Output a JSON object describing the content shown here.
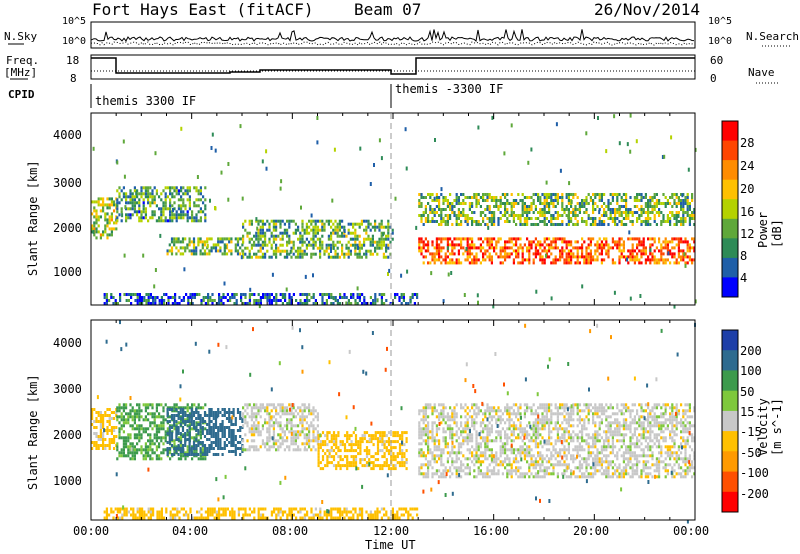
{
  "header": {
    "station": "Fort Hays East (fitACF)",
    "beam": "Beam 07",
    "date": "26/Nov/2014"
  },
  "strip_labels": {
    "nsky": "N.Sky",
    "nsky_ticks": [
      "10^5",
      "10^0"
    ],
    "nsearch": "N.Search",
    "nsearch_ticks": [
      "10^5",
      "10^0"
    ],
    "freq": "Freq.",
    "freq_unit": "[MHz]",
    "freq_ticks": [
      "18",
      "8"
    ],
    "nave": "Nave",
    "nave_ticks": [
      "60",
      "0"
    ],
    "cpid": "CPID",
    "cpid_names": [
      "themis 3300 IF",
      "themis -3300 IF"
    ]
  },
  "panels": {
    "power": {
      "ylabel": "Slant Range [km]",
      "yticks": [
        "4000",
        "3000",
        "2000",
        "1000"
      ],
      "cbar_label": "Power [dB]",
      "cbar_ticks": [
        "28",
        "24",
        "20",
        "16",
        "12",
        "8",
        "4"
      ],
      "cbar_colors": [
        "#ff0000",
        "#ff4500",
        "#ff8c00",
        "#ffc000",
        "#b4d200",
        "#5fa83a",
        "#2e8b57",
        "#1f5fa8",
        "#0000ff"
      ]
    },
    "velocity": {
      "ylabel": "Slant Range [km]",
      "yticks": [
        "4000",
        "3000",
        "2000",
        "1000"
      ],
      "cbar_label": "Velocity [m s^-1]",
      "cbar_ticks": [
        "200",
        "100",
        "50",
        "15",
        "-15",
        "-50",
        "-100",
        "-200"
      ],
      "cbar_colors": [
        "#1e3fa8",
        "#2e6b8f",
        "#3c9a4c",
        "#7ec83c",
        "#c8c8c8",
        "#ffc000",
        "#ff9a00",
        "#ff5000",
        "#ff0000"
      ]
    }
  },
  "xaxis": {
    "label": "Time UT",
    "ticks": [
      "00:00",
      "04:00",
      "08:00",
      "12:00",
      "16:00",
      "20:00",
      "00:00"
    ]
  },
  "chart_data": [
    {
      "type": "heatmap",
      "title": "Power",
      "xlabel": "Time UT",
      "ylabel": "Slant Range [km]",
      "xlim": [
        0,
        24
      ],
      "ylim": [
        180,
        4500
      ],
      "clabel": "Power [dB]",
      "clim": [
        0,
        30
      ],
      "bands": [
        {
          "t0": 0.0,
          "t1": 1.0,
          "r0": 1700,
          "r1": 2600,
          "value": 14
        },
        {
          "t0": 1.0,
          "t1": 4.5,
          "r0": 2100,
          "r1": 2850,
          "value": 10
        },
        {
          "t0": 3.0,
          "t1": 6.0,
          "r0": 1350,
          "r1": 1700,
          "value": 12
        },
        {
          "t0": 6.0,
          "t1": 12.0,
          "r0": 1250,
          "r1": 2100,
          "value": 11
        },
        {
          "t0": 13.0,
          "t1": 24.0,
          "r0": 1100,
          "r1": 1700,
          "value": 24
        },
        {
          "t0": 13.0,
          "t1": 24.0,
          "r0": 2000,
          "r1": 2700,
          "value": 12
        },
        {
          "t0": 0.5,
          "t1": 13.0,
          "r0": 200,
          "r1": 450,
          "value": 6
        }
      ]
    },
    {
      "type": "heatmap",
      "title": "Velocity",
      "xlabel": "Time UT",
      "ylabel": "Slant Range [km]",
      "xlim": [
        0,
        24
      ],
      "ylim": [
        180,
        4500
      ],
      "clabel": "Velocity [m s^-1]",
      "clim": [
        -200,
        200
      ],
      "bands": [
        {
          "t0": 0.0,
          "t1": 1.0,
          "r0": 1700,
          "r1": 2600,
          "value": -30
        },
        {
          "t0": 1.0,
          "t1": 4.5,
          "r0": 1500,
          "r1": 2700,
          "value": 60
        },
        {
          "t0": 3.0,
          "t1": 6.0,
          "r0": 1600,
          "r1": 2600,
          "value": 120
        },
        {
          "t0": 6.0,
          "t1": 9.0,
          "r0": 1700,
          "r1": 2700,
          "value": 0
        },
        {
          "t0": 9.0,
          "t1": 12.5,
          "r0": 1300,
          "r1": 2100,
          "value": -30
        },
        {
          "t0": 13.0,
          "t1": 24.0,
          "r0": 1100,
          "r1": 2700,
          "value": 0
        },
        {
          "t0": 0.5,
          "t1": 13.0,
          "r0": 200,
          "r1": 450,
          "value": -30
        }
      ]
    }
  ]
}
